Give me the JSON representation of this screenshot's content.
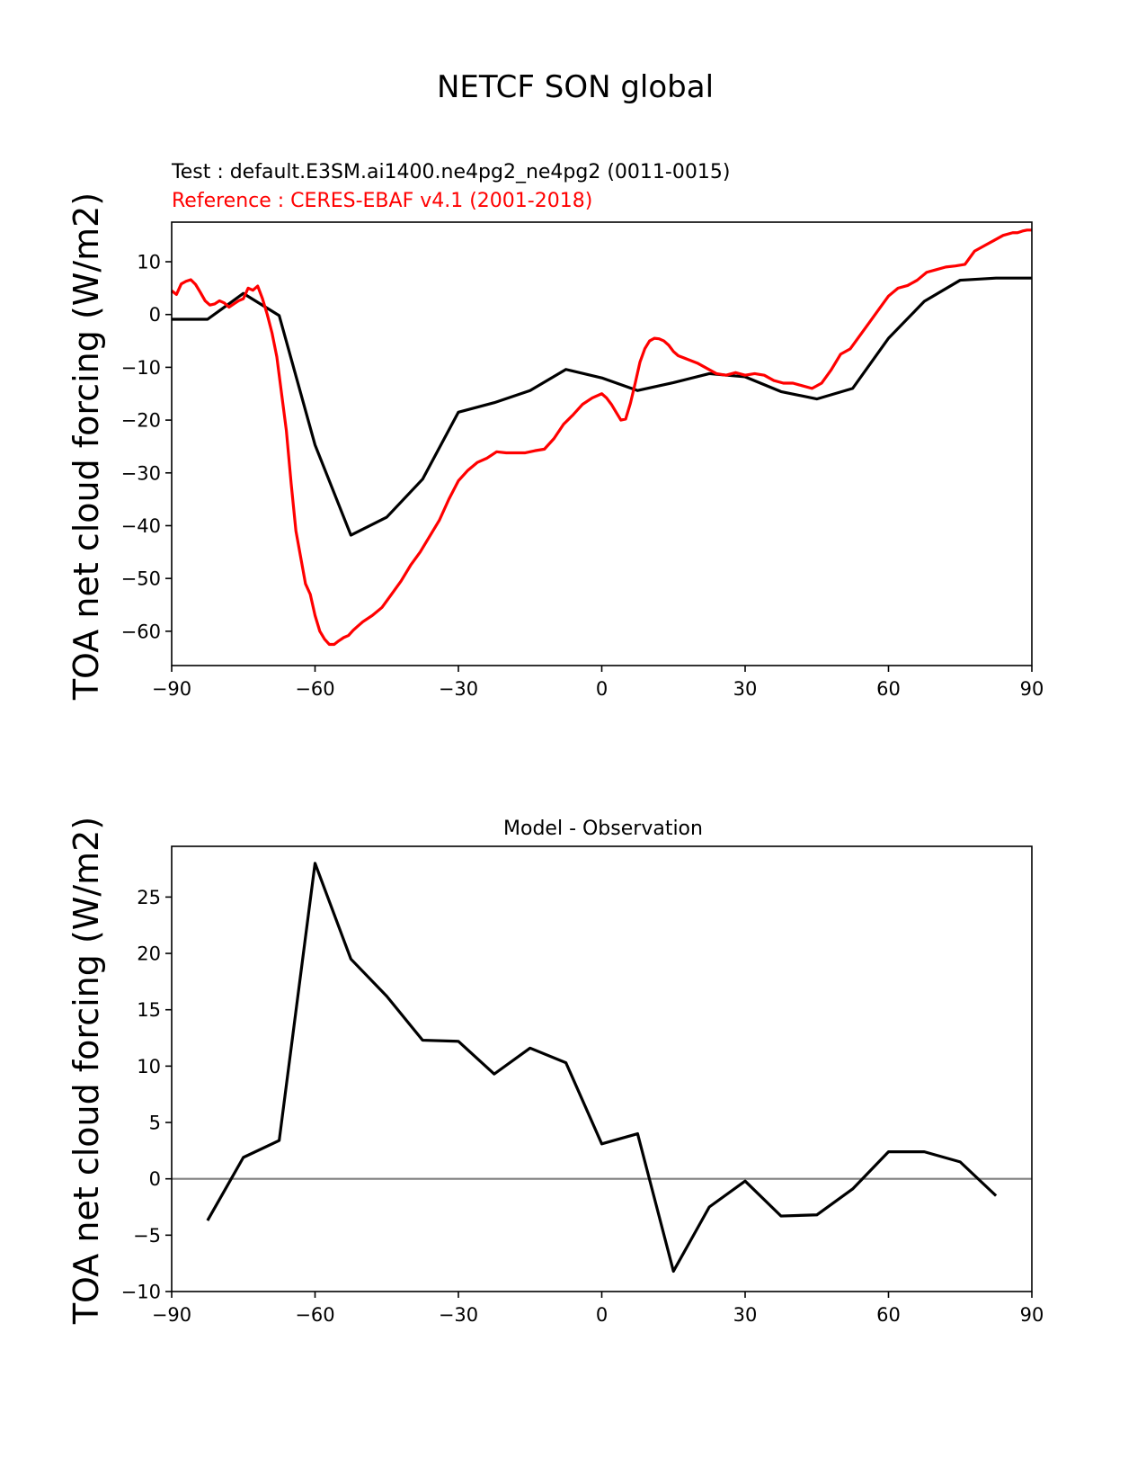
{
  "figure_title": "NETCF SON global",
  "chart_data": [
    {
      "type": "line",
      "test_label": "Test : default.E3SM.ai1400.ne4pg2_ne4pg2 (0011-0015)",
      "reference_label": "Reference : CERES-EBAF v4.1 (2001-2018)",
      "ylabel": "TOA net cloud forcing (W/m2)",
      "xlabel": "",
      "xlim": [
        -90,
        90
      ],
      "ylim": [
        -66.5,
        17.5
      ],
      "xticks": [
        -90,
        -60,
        -30,
        0,
        30,
        60,
        90
      ],
      "yticks": [
        -60,
        -50,
        -40,
        -30,
        -20,
        -10,
        0,
        10
      ],
      "grid": false,
      "colors": {
        "test": "#000000",
        "reference": "#ff0000"
      },
      "series": [
        {
          "name": "Test",
          "color": "#000000",
          "x": [
            -90,
            -82.5,
            -75,
            -67.5,
            -60,
            -52.5,
            -45,
            -37.5,
            -30,
            -22.5,
            -15,
            -7.5,
            0,
            7.5,
            15,
            22.5,
            30,
            37.5,
            45,
            52.5,
            60,
            67.5,
            75,
            82.5,
            90
          ],
          "y": [
            -0.9,
            -0.9,
            4.0,
            -0.2,
            -24.7,
            -41.8,
            -38.4,
            -31.2,
            -18.5,
            -16.7,
            -14.4,
            -10.4,
            -12.0,
            -14.4,
            -12.9,
            -11.2,
            -11.8,
            -14.6,
            -16.0,
            -14.0,
            -4.5,
            2.5,
            6.5,
            6.9,
            6.9
          ]
        },
        {
          "name": "Reference",
          "color": "#ff0000",
          "x": [
            -90,
            -89,
            -88,
            -87,
            -86,
            -85,
            -84,
            -83,
            -82,
            -81,
            -80,
            -79,
            -78,
            -77,
            -76,
            -75,
            -74,
            -73,
            -72,
            -71,
            -70,
            -69,
            -68,
            -67,
            -66,
            -65,
            -64,
            -63,
            -62,
            -61,
            -60,
            -59,
            -58,
            -57,
            -56,
            -55,
            -54,
            -53,
            -52,
            -51,
            -50,
            -48,
            -46,
            -44,
            -42,
            -40,
            -38,
            -36,
            -34,
            -32,
            -30,
            -28,
            -26,
            -24,
            -22,
            -20,
            -18,
            -16,
            -14,
            -12,
            -10,
            -8,
            -6,
            -4,
            -2,
            0,
            1,
            2,
            3,
            4,
            5,
            6,
            7,
            8,
            9,
            10,
            11,
            12,
            13,
            14,
            15,
            16,
            18,
            20,
            22,
            24,
            26,
            28,
            30,
            32,
            34,
            36,
            38,
            40,
            42,
            44,
            46,
            48,
            50,
            52,
            54,
            56,
            58,
            60,
            62,
            64,
            66,
            68,
            70,
            72,
            74,
            76,
            78,
            80,
            82,
            84,
            86,
            87,
            88,
            89,
            90
          ],
          "y": [
            4.5,
            3.8,
            5.8,
            6.3,
            6.6,
            5.7,
            4.2,
            2.6,
            1.8,
            2.0,
            2.6,
            2.2,
            1.4,
            2.0,
            2.6,
            3.0,
            5.0,
            4.6,
            5.4,
            3.0,
            0.0,
            -3.5,
            -8.0,
            -15.0,
            -22.0,
            -32.0,
            -41.0,
            -46.0,
            -51.0,
            -53.0,
            -57.0,
            -60.0,
            -61.5,
            -62.5,
            -62.5,
            -61.8,
            -61.2,
            -60.8,
            -59.8,
            -59.0,
            -58.2,
            -57.0,
            -55.5,
            -53.0,
            -50.5,
            -47.5,
            -45.0,
            -42.0,
            -39.0,
            -35.0,
            -31.5,
            -29.5,
            -28.0,
            -27.2,
            -26.0,
            -26.2,
            -26.2,
            -26.2,
            -25.8,
            -25.5,
            -23.5,
            -20.8,
            -19.0,
            -17.0,
            -15.8,
            -15.0,
            -15.8,
            -17.0,
            -18.5,
            -20.0,
            -19.8,
            -16.8,
            -13.0,
            -9.0,
            -6.5,
            -5.0,
            -4.5,
            -4.6,
            -5.0,
            -5.8,
            -7.0,
            -7.8,
            -8.5,
            -9.2,
            -10.2,
            -11.2,
            -11.5,
            -11.0,
            -11.5,
            -11.2,
            -11.5,
            -12.5,
            -13.0,
            -13.0,
            -13.5,
            -14.0,
            -13.0,
            -10.5,
            -7.5,
            -6.5,
            -4.0,
            -1.5,
            1.0,
            3.5,
            5.0,
            5.5,
            6.5,
            8.0,
            8.5,
            9.0,
            9.2,
            9.5,
            12.0,
            13.0,
            14.0,
            15.0,
            15.5,
            15.5,
            15.8,
            16.0,
            16.0
          ]
        }
      ]
    },
    {
      "type": "line",
      "title": "Model - Observation",
      "ylabel": "TOA net cloud forcing (W/m2)",
      "xlabel": "",
      "xlim": [
        -90,
        90
      ],
      "ylim": [
        -10,
        29.5
      ],
      "xticks": [
        -90,
        -60,
        -30,
        0,
        30,
        60,
        90
      ],
      "yticks": [
        -10,
        -5,
        0,
        5,
        10,
        15,
        20,
        25
      ],
      "grid": false,
      "zero_line_color": "#808080",
      "series": [
        {
          "color": "#000000",
          "x": [
            -82.5,
            -75,
            -67.5,
            -60,
            -52.5,
            -45,
            -37.5,
            -30,
            -22.5,
            -15,
            -7.5,
            0,
            7.5,
            15,
            22.5,
            30,
            37.5,
            45,
            52.5,
            60,
            67.5,
            75,
            82.5
          ],
          "y": [
            -3.7,
            1.9,
            3.4,
            28.0,
            19.5,
            16.2,
            12.3,
            12.2,
            9.3,
            11.6,
            10.3,
            3.1,
            4.0,
            -8.2,
            -2.5,
            -0.2,
            -3.3,
            -3.2,
            -0.9,
            2.4,
            2.4,
            1.5,
            -1.5
          ]
        }
      ]
    }
  ]
}
